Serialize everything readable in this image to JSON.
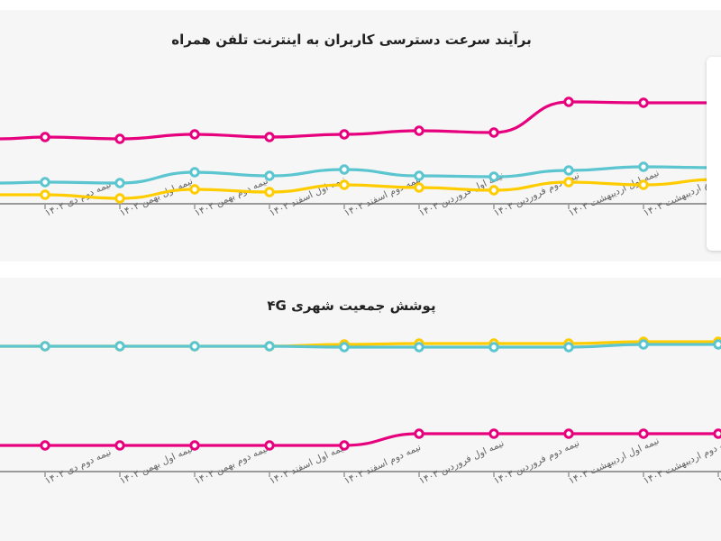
{
  "colors": {
    "pink": "#e6007e",
    "cyan": "#5bc5d0",
    "yellow": "#ffcc00",
    "panel_bg": "#f6f6f6",
    "axis": "#999999"
  },
  "x_labels": [
    "نیمه دوم دی ۱۴۰۲",
    "نیمه اول بهمن ۱۴۰۲",
    "نیمه دوم بهمن ۱۴۰۲",
    "نیمه اول اسفند ۱۴۰۲",
    "نیمه دوم اسفند ۱۴۰۲",
    "نیمه اول فروردین ۱۴۰۳",
    "نیمه دوم فروردین ۱۴۰۳",
    "نیمه اول اردیبهشت ۱۴۰۳",
    "نیمه دوم اردیبهشت ۱۴۰۳",
    "نیمه اول خرداد ۱۴۰۳"
  ],
  "chart_data": [
    {
      "type": "line",
      "title": "برآیند سرعت دسترسی کاربران به اینترنت تلفن همراه",
      "xlabel": "",
      "ylabel": "",
      "grid": false,
      "legend_position": "right (white panel, partially visible)",
      "categories": [
        "نیمه دوم دی ۱۴۰۲",
        "نیمه اول بهمن ۱۴۰۲",
        "نیمه دوم بهمن ۱۴۰۲",
        "نیمه اول اسفند ۱۴۰۲",
        "نیمه دوم اسفند ۱۴۰۲",
        "نیمه اول فروردین ۱۴۰۳",
        "نیمه دوم فروردین ۱۴۰۳",
        "نیمه اول اردیبهشت ۱۴۰۳",
        "نیمه دوم اردیبهشت ۱۴۰۳",
        "نیمه اول خرداد ۱۴۰۳"
      ],
      "series": [
        {
          "name": "pink",
          "color": "#e6007e",
          "values": [
            152,
            154,
            149,
            152,
            149,
            145,
            147,
            113,
            114,
            114
          ]
        },
        {
          "name": "cyan",
          "color": "#5bc5d0",
          "values": [
            202,
            203,
            191,
            195,
            188,
            195,
            196,
            189,
            185,
            186
          ]
        },
        {
          "name": "yellow",
          "color": "#ffcc00",
          "values": [
            216,
            220,
            210,
            213,
            205,
            208,
            211,
            202,
            205,
            199
          ]
        }
      ],
      "note": "values are pixel y-positions (lower = higher value); no y-axis ticks visible"
    },
    {
      "type": "line",
      "title": "پوشش جمعیت شهری ۴G",
      "xlabel": "",
      "ylabel": "",
      "grid": false,
      "categories": [
        "نیمه دوم دی ۱۴۰۲",
        "نیمه اول بهمن ۱۴۰۲",
        "نیمه دوم بهمن ۱۴۰۲",
        "نیمه اول اسفند ۱۴۰۲",
        "نیمه دوم اسفند ۱۴۰۲",
        "نیمه اول فروردین ۱۴۰۳",
        "نیمه دوم فروردین ۱۴۰۳",
        "نیمه اول اردیبهشت ۱۴۰۳",
        "نیمه دوم اردیبهشت ۱۴۰۳",
        "نیمه اول خرداد ۱۴۰۳"
      ],
      "series": [
        {
          "name": "yellow",
          "color": "#ffcc00",
          "values": [
            384,
            384,
            384,
            384,
            382,
            381,
            381,
            381,
            379,
            379
          ]
        },
        {
          "name": "cyan",
          "color": "#5bc5d0",
          "values": [
            384,
            384,
            384,
            384,
            385,
            385,
            385,
            385,
            382,
            382
          ]
        },
        {
          "name": "pink",
          "color": "#e6007e",
          "values": [
            494,
            494,
            494,
            494,
            494,
            481,
            481,
            481,
            481,
            481
          ]
        }
      ],
      "note": "values are pixel y-positions (lower = higher value); no y-axis ticks visible"
    }
  ]
}
